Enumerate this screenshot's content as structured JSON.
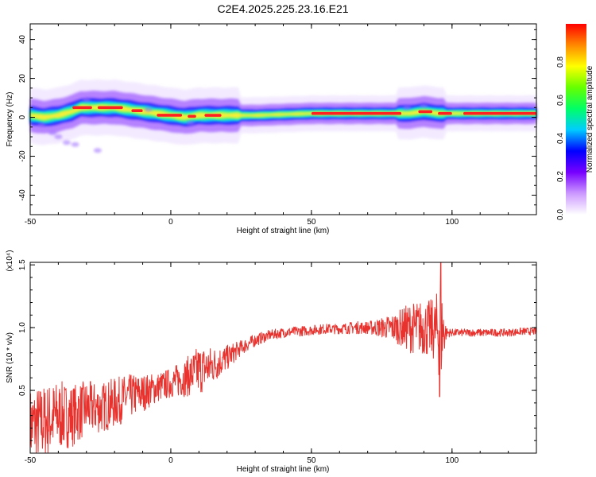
{
  "title": "C2E4.2025.225.23.16.E21",
  "chart_data": [
    {
      "type": "heatmap",
      "xlabel": "Height of straight line (km)",
      "ylabel": "Frequency (Hz)",
      "xlim": [
        -50,
        130
      ],
      "ylim": [
        -50,
        48
      ],
      "xticks": [
        "-50",
        "0",
        "50",
        "100"
      ],
      "yticks": [
        "40",
        "20",
        "0",
        "-20",
        "-40"
      ],
      "colorbar": {
        "label": "Normalized spectral amplitude",
        "range": [
          0,
          1
        ],
        "ticks": [
          "0.0",
          "0.2",
          "0.4",
          "0.6",
          "0.8"
        ],
        "colors": [
          "#ffffff",
          "#cc99ff",
          "#7700ff",
          "#0000ff",
          "#00ccff",
          "#00ff66",
          "#66ff00",
          "#ffff00",
          "#ff8800",
          "#ff0000"
        ]
      },
      "ridge": {
        "x": [
          -50,
          -45,
          -40,
          -35,
          -32,
          -28,
          -25,
          -20,
          -15,
          -10,
          -5,
          0,
          5,
          10,
          20,
          30,
          50,
          70,
          80,
          85,
          90,
          95,
          100,
          110,
          120,
          130
        ],
        "frequency": [
          1,
          0,
          1,
          3,
          5,
          5,
          5,
          5,
          4,
          3,
          2,
          1,
          0,
          1,
          1,
          1,
          2,
          2,
          2,
          2,
          3,
          2,
          2,
          2,
          2,
          2
        ]
      }
    },
    {
      "type": "line",
      "xlabel": "Height of straight line (km)",
      "ylabel": "SNR (10 * v/v)",
      "y_multiplier": "(x10⁴)",
      "xlim": [
        -50,
        130
      ],
      "ylim": [
        0,
        1.52
      ],
      "xticks": [
        "-50",
        "0",
        "50",
        "100"
      ],
      "yticks": [
        "1.5",
        "1.0",
        "0.5"
      ],
      "series": [
        {
          "color": "#e8322e",
          "x": [
            -50,
            -45,
            -40,
            -35,
            -30,
            -25,
            -20,
            -15,
            -10,
            -5,
            0,
            5,
            10,
            15,
            20,
            25,
            30,
            35,
            40,
            45,
            50,
            55,
            60,
            65,
            70,
            75,
            80,
            85,
            90,
            94,
            96,
            98,
            100,
            105,
            110,
            115,
            120,
            125,
            130
          ],
          "y": [
            0.22,
            0.25,
            0.3,
            0.3,
            0.36,
            0.36,
            0.4,
            0.45,
            0.48,
            0.52,
            0.56,
            0.6,
            0.66,
            0.7,
            0.76,
            0.84,
            0.9,
            0.94,
            0.96,
            0.97,
            0.98,
            0.99,
            0.99,
            1.0,
            1.0,
            1.0,
            1.0,
            1.0,
            1.0,
            0.98,
            0.98,
            0.96,
            0.96,
            0.96,
            0.96,
            0.96,
            0.96,
            0.97,
            0.97
          ],
          "noise": [
            0.3,
            0.3,
            0.28,
            0.25,
            0.22,
            0.2,
            0.2,
            0.18,
            0.15,
            0.12,
            0.12,
            0.15,
            0.2,
            0.15,
            0.1,
            0.06,
            0.05,
            0.04,
            0.04,
            0.04,
            0.04,
            0.04,
            0.04,
            0.05,
            0.05,
            0.08,
            0.12,
            0.2,
            0.22,
            0.25,
            0.45,
            0.04,
            0.03,
            0.03,
            0.03,
            0.03,
            0.03,
            0.03,
            0.03
          ]
        }
      ]
    }
  ]
}
